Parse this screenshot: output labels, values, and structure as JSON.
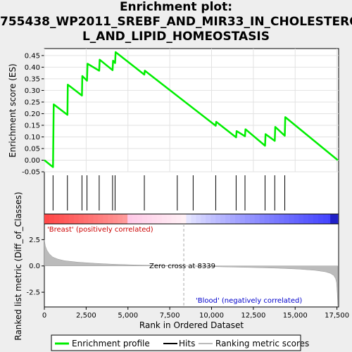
{
  "title_lines": [
    "Enrichment plot:",
    "755438_WP2011_SREBF_AND_MIR33_IN_CHOLESTERO",
    "L_AND_LIPID_HOMEOSTASIS"
  ],
  "colors": {
    "es_line": "#00ee00",
    "hits": "#000000",
    "metric_fill": "#bbbbbb",
    "zero_cross_line": "#aaaaaa",
    "pos_label": "#cc0000",
    "neg_label": "#0000cc",
    "frame_bg": "#ffffff",
    "page_bg": "#eeeeee"
  },
  "chart_data": [
    {
      "type": "line",
      "name": "enrichment-score",
      "ylabel": "Enrichment score (ES)",
      "xlim": [
        0,
        17600
      ],
      "ylim": [
        -0.05,
        0.48
      ],
      "yticks": [
        "0.45",
        "0.40",
        "0.35",
        "0.30",
        "0.25",
        "0.20",
        "0.15",
        "0.10",
        "0.05",
        "0.00",
        "-0.05"
      ],
      "grid": true,
      "series": [
        {
          "name": "Enrichment profile",
          "x": [
            0,
            520,
            560,
            1380,
            1400,
            2250,
            2270,
            2550,
            2580,
            3280,
            3310,
            4080,
            4110,
            4230,
            4260,
            5980,
            6010,
            10250,
            10280,
            11470,
            11500,
            12000,
            12030,
            13200,
            13230,
            13780,
            13810,
            14380,
            14410,
            17550
          ],
          "y": [
            0.0,
            -0.03,
            0.24,
            0.195,
            0.325,
            0.278,
            0.362,
            0.342,
            0.415,
            0.385,
            0.432,
            0.387,
            0.428,
            0.418,
            0.465,
            0.368,
            0.385,
            0.148,
            0.165,
            0.098,
            0.125,
            0.103,
            0.133,
            0.062,
            0.112,
            0.083,
            0.143,
            0.105,
            0.185,
            0.0
          ]
        }
      ],
      "hits": [
        520,
        1380,
        2250,
        2550,
        3280,
        4080,
        4230,
        5980,
        7950,
        8900,
        10250,
        11470,
        12000,
        13200,
        13780,
        14380
      ]
    },
    {
      "type": "area",
      "name": "ranked-list-metric",
      "ylabel": "Ranked list metric (Diff_of_Classes)",
      "xlabel": "Rank in Ordered Dataset",
      "xlim": [
        0,
        17600
      ],
      "ylim": [
        -3.9,
        4.0
      ],
      "yticks": [
        "2.5",
        "0.0",
        "-2.5"
      ],
      "xticks": [
        "0",
        "2,500",
        "5,000",
        "7,500",
        "10,000",
        "12,500",
        "15,000",
        "17,500"
      ],
      "series": [
        {
          "name": "Ranking metric scores",
          "x": [
            0,
            60,
            150,
            300,
            500,
            800,
            1200,
            2000,
            3000,
            4000,
            5500,
            7000,
            8339,
            9500,
            11000,
            12500,
            14000,
            15200,
            16200,
            16800,
            17100,
            17300,
            17420,
            17480,
            17520,
            17550
          ],
          "y": [
            2.5,
            1.9,
            1.5,
            1.15,
            0.85,
            0.65,
            0.5,
            0.36,
            0.25,
            0.17,
            0.09,
            0.04,
            0.0,
            -0.05,
            -0.1,
            -0.15,
            -0.22,
            -0.3,
            -0.42,
            -0.55,
            -0.7,
            -0.9,
            -1.2,
            -1.6,
            -2.6,
            -3.8
          ]
        }
      ],
      "zero_cross": 8339,
      "annotations": {
        "zero_cross": "Zero cross at 8339",
        "positive": "'Breast' (positively correlated)",
        "negative": "'Blood' (negatively correlated)"
      }
    }
  ],
  "legend": {
    "placement": "bottom",
    "items": [
      "Enrichment profile",
      "Hits",
      "Ranking metric scores"
    ]
  }
}
